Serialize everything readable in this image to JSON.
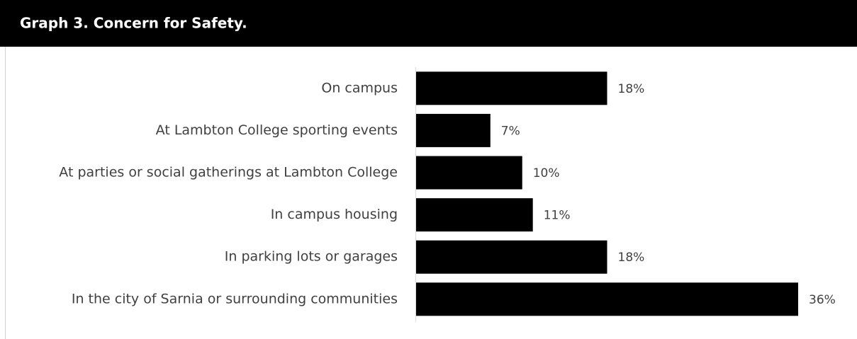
{
  "chart_data": {
    "type": "bar",
    "orientation": "horizontal",
    "title": "Graph 3. Concern for Safety.",
    "categories": [
      "On campus",
      "At Lambton College sporting events",
      "At parties or social gatherings at Lambton College",
      "In campus housing",
      "In parking lots or garages",
      "In the city of Sarnia or surrounding communities"
    ],
    "values": [
      18,
      7,
      10,
      11,
      18,
      36
    ],
    "value_labels": [
      "18%",
      "7%",
      "10%",
      "11%",
      "18%",
      "36%"
    ],
    "color": "#000000"
  }
}
